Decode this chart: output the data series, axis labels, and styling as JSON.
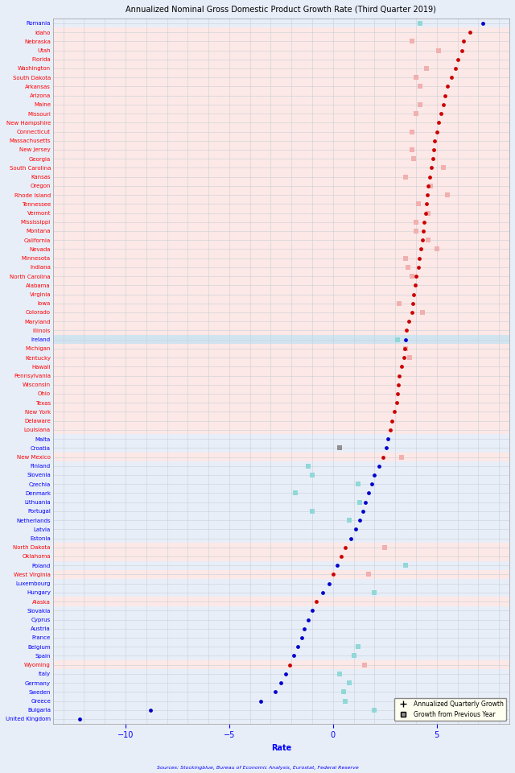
{
  "title": "Annualized Nominal Gross Domestic Product Growth Rate (Third Quarter 2019)",
  "xlabel": "Rate",
  "source": "Sources: Stockingblue, Bureau of Economic Analysis, Eurostat, Federal Reserve",
  "legend_dot": "Annualized Quarterly Growth",
  "legend_sq": "Growth from Previous Year",
  "xlim": [
    -13.5,
    8.5
  ],
  "xticks": [
    -10,
    -5,
    0,
    5
  ],
  "background_us": "#fce8e6",
  "background_eu": "#e8eef8",
  "grid_color": "#c8d0d8",
  "highlight_row": "Ireland",
  "highlight_color": "#d0e4f0",
  "dot_us": "#cc0000",
  "dot_eu": "#0000cc",
  "sq_us": "#f0b0b0",
  "sq_eu": "#90d8d8",
  "sq_malta": "#909090",
  "entries": [
    {
      "name": "Romania",
      "region": "eu",
      "dot": 7.2,
      "sq": 4.2
    },
    {
      "name": "Idaho",
      "region": "us",
      "dot": 6.6,
      "sq": null
    },
    {
      "name": "Nebraska",
      "region": "us",
      "dot": 6.3,
      "sq": 3.8
    },
    {
      "name": "Utah",
      "region": "us",
      "dot": 6.2,
      "sq": 5.1
    },
    {
      "name": "Florida",
      "region": "us",
      "dot": 6.0,
      "sq": null
    },
    {
      "name": "Washington",
      "region": "us",
      "dot": 5.9,
      "sq": 4.5
    },
    {
      "name": "South Dakota",
      "region": "us",
      "dot": 5.7,
      "sq": 4.0
    },
    {
      "name": "Arkansas",
      "region": "us",
      "dot": 5.5,
      "sq": 4.2
    },
    {
      "name": "Arizona",
      "region": "us",
      "dot": 5.4,
      "sq": null
    },
    {
      "name": "Maine",
      "region": "us",
      "dot": 5.3,
      "sq": 4.2
    },
    {
      "name": "Missouri",
      "region": "us",
      "dot": 5.2,
      "sq": 4.0
    },
    {
      "name": "New Hampshire",
      "region": "us",
      "dot": 5.1,
      "sq": null
    },
    {
      "name": "Connecticut",
      "region": "us",
      "dot": 5.0,
      "sq": 3.8
    },
    {
      "name": "Massachusetts",
      "region": "us",
      "dot": 4.9,
      "sq": null
    },
    {
      "name": "New Jersey",
      "region": "us",
      "dot": 4.85,
      "sq": 3.8
    },
    {
      "name": "Georgia",
      "region": "us",
      "dot": 4.8,
      "sq": 3.9
    },
    {
      "name": "South Carolina",
      "region": "us",
      "dot": 4.75,
      "sq": 5.3
    },
    {
      "name": "Kansas",
      "region": "us",
      "dot": 4.65,
      "sq": 3.5
    },
    {
      "name": "Oregon",
      "region": "us",
      "dot": 4.6,
      "sq": 4.7
    },
    {
      "name": "Rhode Island",
      "region": "us",
      "dot": 4.55,
      "sq": 5.5
    },
    {
      "name": "Tennessee",
      "region": "us",
      "dot": 4.5,
      "sq": 4.1
    },
    {
      "name": "Vermont",
      "region": "us",
      "dot": 4.45,
      "sq": 4.6
    },
    {
      "name": "Mississippi",
      "region": "us",
      "dot": 4.4,
      "sq": 4.0
    },
    {
      "name": "Montana",
      "region": "us",
      "dot": 4.35,
      "sq": 4.0
    },
    {
      "name": "California",
      "region": "us",
      "dot": 4.3,
      "sq": 4.6
    },
    {
      "name": "Nevada",
      "region": "us",
      "dot": 4.25,
      "sq": 5.0
    },
    {
      "name": "Minnesota",
      "region": "us",
      "dot": 4.15,
      "sq": 3.5
    },
    {
      "name": "Indiana",
      "region": "us",
      "dot": 4.1,
      "sq": 3.6
    },
    {
      "name": "North Carolina",
      "region": "us",
      "dot": 4.0,
      "sq": 3.8
    },
    {
      "name": "Alabama",
      "region": "us",
      "dot": 3.95,
      "sq": null
    },
    {
      "name": "Virginia",
      "region": "us",
      "dot": 3.9,
      "sq": null
    },
    {
      "name": "Iowa",
      "region": "us",
      "dot": 3.85,
      "sq": 3.2
    },
    {
      "name": "Colorado",
      "region": "us",
      "dot": 3.8,
      "sq": 4.3
    },
    {
      "name": "Maryland",
      "region": "us",
      "dot": 3.65,
      "sq": null
    },
    {
      "name": "Illinois",
      "region": "us",
      "dot": 3.55,
      "sq": null
    },
    {
      "name": "Ireland",
      "region": "eu",
      "dot": 3.5,
      "sq": 3.1
    },
    {
      "name": "Michigan",
      "region": "us",
      "dot": 3.45,
      "sq": 3.5
    },
    {
      "name": "Kentucky",
      "region": "us",
      "dot": 3.4,
      "sq": 3.7
    },
    {
      "name": "Hawaii",
      "region": "us",
      "dot": 3.3,
      "sq": null
    },
    {
      "name": "Pennsylvania",
      "region": "us",
      "dot": 3.2,
      "sq": null
    },
    {
      "name": "Wisconsin",
      "region": "us",
      "dot": 3.15,
      "sq": null
    },
    {
      "name": "Ohio",
      "region": "us",
      "dot": 3.1,
      "sq": null
    },
    {
      "name": "Texas",
      "region": "us",
      "dot": 3.05,
      "sq": null
    },
    {
      "name": "New York",
      "region": "us",
      "dot": 2.95,
      "sq": null
    },
    {
      "name": "Delaware",
      "region": "us",
      "dot": 2.85,
      "sq": null
    },
    {
      "name": "Louisiana",
      "region": "us",
      "dot": 2.75,
      "sq": null
    },
    {
      "name": "Malta",
      "region": "eu",
      "dot": 2.65,
      "sq": null,
      "sq_special": "gray"
    },
    {
      "name": "Croatia",
      "region": "eu",
      "dot": 2.55,
      "sq": 0.3,
      "sq_special": "gray"
    },
    {
      "name": "New Mexico",
      "region": "us",
      "dot": 2.4,
      "sq": 3.3
    },
    {
      "name": "Finland",
      "region": "eu",
      "dot": 2.2,
      "sq": -1.2
    },
    {
      "name": "Slovenia",
      "region": "eu",
      "dot": 2.0,
      "sq": -1.0
    },
    {
      "name": "Czechia",
      "region": "eu",
      "dot": 1.85,
      "sq": 1.2
    },
    {
      "name": "Denmark",
      "region": "eu",
      "dot": 1.7,
      "sq": -1.8
    },
    {
      "name": "Lithuania",
      "region": "eu",
      "dot": 1.55,
      "sq": 1.3
    },
    {
      "name": "Portugal",
      "region": "eu",
      "dot": 1.45,
      "sq": -1.0
    },
    {
      "name": "Netherlands",
      "region": "eu",
      "dot": 1.3,
      "sq": 0.8
    },
    {
      "name": "Latvia",
      "region": "eu",
      "dot": 1.1,
      "sq": null
    },
    {
      "name": "Estonia",
      "region": "eu",
      "dot": 0.85,
      "sq": null
    },
    {
      "name": "North Dakota",
      "region": "us",
      "dot": 0.6,
      "sq": 2.5
    },
    {
      "name": "Oklahoma",
      "region": "us",
      "dot": 0.4,
      "sq": null
    },
    {
      "name": "Poland",
      "region": "eu",
      "dot": 0.2,
      "sq": 3.5
    },
    {
      "name": "West Virginia",
      "region": "us",
      "dot": 0.0,
      "sq": 1.7
    },
    {
      "name": "Luxembourg",
      "region": "eu",
      "dot": -0.2,
      "sq": null
    },
    {
      "name": "Hungary",
      "region": "eu",
      "dot": -0.5,
      "sq": 2.0
    },
    {
      "name": "Alaska",
      "region": "us",
      "dot": -0.8,
      "sq": null
    },
    {
      "name": "Slovakia",
      "region": "eu",
      "dot": -1.0,
      "sq": null
    },
    {
      "name": "Cyprus",
      "region": "eu",
      "dot": -1.2,
      "sq": null
    },
    {
      "name": "Austria",
      "region": "eu",
      "dot": -1.4,
      "sq": null
    },
    {
      "name": "France",
      "region": "eu",
      "dot": -1.5,
      "sq": null
    },
    {
      "name": "Belgium",
      "region": "eu",
      "dot": -1.7,
      "sq": 1.2
    },
    {
      "name": "Spain",
      "region": "eu",
      "dot": -1.9,
      "sq": 1.0
    },
    {
      "name": "Wyoming",
      "region": "us",
      "dot": -2.1,
      "sq": 1.5
    },
    {
      "name": "Italy",
      "region": "eu",
      "dot": -2.3,
      "sq": 0.3
    },
    {
      "name": "Germany",
      "region": "eu",
      "dot": -2.5,
      "sq": 0.8
    },
    {
      "name": "Sweden",
      "region": "eu",
      "dot": -2.8,
      "sq": 0.5
    },
    {
      "name": "Greece",
      "region": "eu",
      "dot": -3.5,
      "sq": 0.6
    },
    {
      "name": "Bulgaria",
      "region": "eu",
      "dot": -8.8,
      "sq": 2.0
    },
    {
      "name": "United Kingdom",
      "region": "eu",
      "dot": -12.2,
      "sq": null
    }
  ]
}
